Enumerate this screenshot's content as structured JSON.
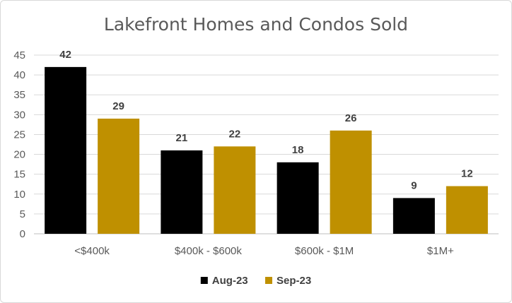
{
  "chart_data": {
    "type": "bar",
    "title": "Lakefront Homes and Condos Sold",
    "xlabel": "",
    "ylabel": "",
    "categories": [
      "<$400k",
      "$400k - $600k",
      "$600k - $1M",
      "$1M+"
    ],
    "series": [
      {
        "name": "Aug-23",
        "values": [
          42,
          21,
          18,
          9
        ],
        "color": "#000000"
      },
      {
        "name": "Sep-23",
        "values": [
          29,
          22,
          26,
          12
        ],
        "color": "#bf9000"
      }
    ],
    "ylim": [
      0,
      45
    ],
    "yticks": [
      0,
      5,
      10,
      15,
      20,
      25,
      30,
      35,
      40,
      45
    ],
    "grid": true,
    "gridline_color": "#d9d9d9",
    "legend_position": "bottom",
    "data_labels": true
  }
}
